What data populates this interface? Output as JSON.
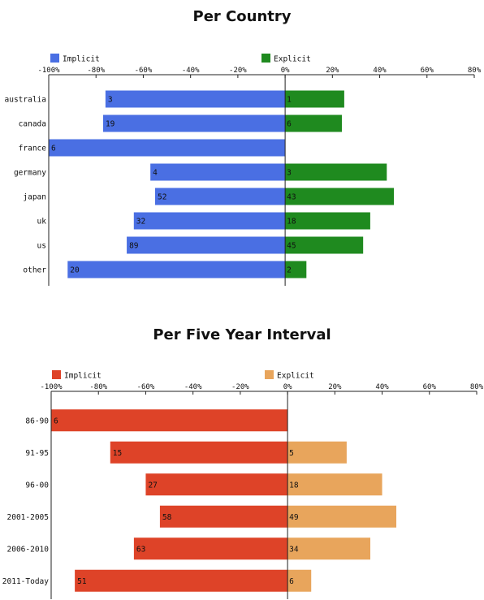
{
  "chart_data": [
    {
      "type": "bar",
      "orientation": "horizontal-diverging",
      "title": "Per Country",
      "categories": [
        "australia",
        "canada",
        "france",
        "germany",
        "japan",
        "uk",
        "us",
        "other"
      ],
      "x_ticks": [
        "-100%",
        "-80%",
        "-60%",
        "-40%",
        "-20%",
        "0%",
        "20%",
        "40%",
        "60%",
        "80%"
      ],
      "xlim": [
        -100,
        80
      ],
      "legend_position": "top",
      "series": [
        {
          "name": "Implicit",
          "color": "#4a6fe3",
          "values": [
            -76,
            -77,
            -100,
            -57,
            -55,
            -64,
            -67,
            -92
          ],
          "labels": [
            "3",
            "19",
            "6",
            "4",
            "52",
            "32",
            "89",
            "20"
          ]
        },
        {
          "name": "Explicit",
          "color": "#1f8a1f",
          "values": [
            25,
            24,
            0,
            43,
            46,
            36,
            33,
            9
          ],
          "labels": [
            "1",
            "6",
            "",
            "3",
            "43",
            "18",
            "45",
            "2"
          ]
        }
      ]
    },
    {
      "type": "bar",
      "orientation": "horizontal-diverging",
      "title": "Per Five Year Interval",
      "categories": [
        "86-90",
        "91-95",
        "96-00",
        "2001-2005",
        "2006-2010",
        "2011-Today"
      ],
      "x_ticks": [
        "-100%",
        "-80%",
        "-60%",
        "-40%",
        "-20%",
        "0%",
        "20%",
        "40%",
        "60%",
        "80%"
      ],
      "xlim": [
        -100,
        80
      ],
      "legend_position": "top",
      "series": [
        {
          "name": "Implicit",
          "color": "#de4328",
          "values": [
            -100,
            -75,
            -60,
            -54,
            -65,
            -90
          ],
          "labels": [
            "6",
            "15",
            "27",
            "58",
            "63",
            "51"
          ]
        },
        {
          "name": "Explicit",
          "color": "#e8a55c",
          "values": [
            0,
            25,
            40,
            46,
            35,
            10
          ],
          "labels": [
            "",
            "5",
            "18",
            "49",
            "34",
            "6"
          ]
        }
      ]
    }
  ]
}
